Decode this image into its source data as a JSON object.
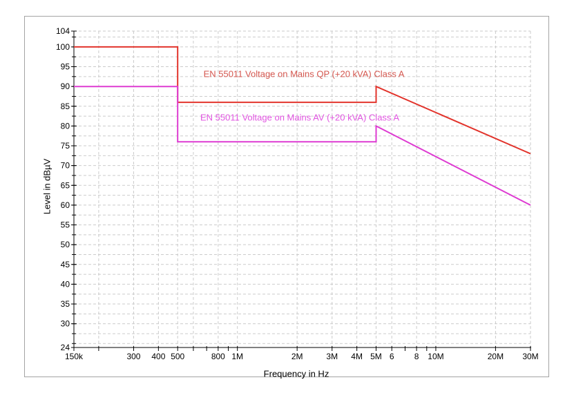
{
  "chart_data": {
    "type": "line",
    "title": "",
    "xlabel": "Frequency in Hz",
    "ylabel": "Level in dBµV",
    "x_scale": "log",
    "xlim": [
      150000,
      30000000
    ],
    "ylim": [
      24,
      104
    ],
    "grid": true,
    "legend_position": "inline-annotations",
    "x_gridlines": [
      200000,
      300000,
      400000,
      500000,
      600000,
      800000,
      1000000,
      2000000,
      3000000,
      4000000,
      5000000,
      6000000,
      8000000,
      10000000,
      20000000,
      30000000
    ],
    "x_minor_ticks": [
      150000,
      200000,
      300000,
      400000,
      500000,
      600000,
      700000,
      800000,
      900000,
      1000000,
      2000000,
      3000000,
      4000000,
      5000000,
      6000000,
      7000000,
      8000000,
      9000000,
      10000000,
      20000000,
      30000000
    ],
    "x_tick_labels": [
      {
        "f": 150000,
        "label": "150k"
      },
      {
        "f": 300000,
        "label": "300"
      },
      {
        "f": 400000,
        "label": "400"
      },
      {
        "f": 500000,
        "label": "500"
      },
      {
        "f": 800000,
        "label": "800"
      },
      {
        "f": 1000000,
        "label": "1M"
      },
      {
        "f": 2000000,
        "label": "2M"
      },
      {
        "f": 3000000,
        "label": "3M"
      },
      {
        "f": 4000000,
        "label": "4M"
      },
      {
        "f": 5000000,
        "label": "5M"
      },
      {
        "f": 6000000,
        "label": "6"
      },
      {
        "f": 8000000,
        "label": "8"
      },
      {
        "f": 10000000,
        "label": "10M"
      },
      {
        "f": 20000000,
        "label": "20M"
      },
      {
        "f": 30000000,
        "label": "30M"
      }
    ],
    "y_tick_labels": [
      104,
      100,
      95,
      90,
      85,
      80,
      75,
      70,
      65,
      60,
      55,
      50,
      45,
      40,
      35,
      30,
      24
    ],
    "y_gridline_start": 25,
    "y_gridline_step": 2.5,
    "series": [
      {
        "id": "qp",
        "name": "EN 55011 Voltage on Mains QP (+20 kVA) Class A",
        "color": "#e2332b",
        "label_color": "#d4574f",
        "points": [
          [
            150000,
            100
          ],
          [
            500000,
            100
          ],
          [
            500000,
            86
          ],
          [
            5000000,
            86
          ],
          [
            5000000,
            90
          ],
          [
            30000000,
            73
          ]
        ]
      },
      {
        "id": "av",
        "name": "EN 55011 Voltage on Mains AV (+20 kVA) Class A",
        "color": "#de3bd2",
        "label_color": "#e156e1",
        "points": [
          [
            150000,
            90
          ],
          [
            500000,
            90
          ],
          [
            500000,
            76
          ],
          [
            5000000,
            76
          ],
          [
            5000000,
            80
          ],
          [
            30000000,
            60
          ]
        ]
      }
    ],
    "colors": {
      "grid": "#cbcbcb",
      "axis": "#000000",
      "tick_text": "#000000",
      "panel_border": "#a3a3a3",
      "background": "#ffffff"
    }
  }
}
